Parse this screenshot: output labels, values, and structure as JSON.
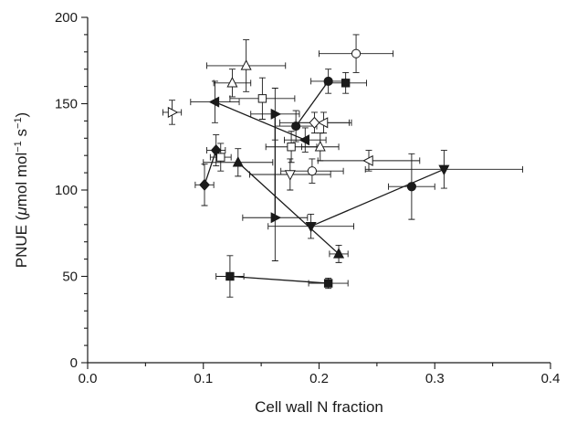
{
  "chart_data": {
    "type": "scatter",
    "title": "",
    "xlabel": "Cell wall N fraction",
    "ylabel_parts": [
      "PNUE (",
      "μ",
      "mol mol",
      "−1",
      " s",
      "−1",
      ")"
    ],
    "xlim": [
      0.0,
      0.4
    ],
    "ylim": [
      0,
      200
    ],
    "x_ticks": [
      0.0,
      0.1,
      0.2,
      0.3,
      0.4
    ],
    "x_tick_labels": [
      "0.0",
      "0.1",
      "0.2",
      "0.3",
      "0.4"
    ],
    "y_ticks": [
      0,
      50,
      100,
      150,
      200
    ],
    "y_tick_labels": [
      "0",
      "50",
      "100",
      "150",
      "200"
    ],
    "grid": false,
    "legend": "none",
    "series": [
      {
        "marker": "square",
        "filled": true,
        "connected": true,
        "points": [
          {
            "x": 0.123,
            "y": 50,
            "xerr": 0.012,
            "yerr": 12
          },
          {
            "x": 0.208,
            "y": 46,
            "xerr": 0.017,
            "yerr": 3
          }
        ]
      },
      {
        "marker": "square",
        "filled": true,
        "connected": false,
        "points": [
          {
            "x": 0.223,
            "y": 162,
            "xerr": 0.018,
            "yerr": 6
          }
        ]
      },
      {
        "marker": "triangle-up",
        "filled": true,
        "connected": true,
        "points": [
          {
            "x": 0.13,
            "y": 116,
            "xerr": 0.03,
            "yerr": 8
          },
          {
            "x": 0.217,
            "y": 63,
            "xerr": 0.008,
            "yerr": 5
          }
        ]
      },
      {
        "marker": "triangle-down",
        "filled": true,
        "connected": true,
        "points": [
          {
            "x": 0.193,
            "y": 79,
            "xerr": 0.037,
            "yerr": 7
          },
          {
            "x": 0.308,
            "y": 112,
            "xerr": 0.068,
            "yerr": 11
          }
        ]
      },
      {
        "marker": "triangle-right",
        "filled": true,
        "connected": true,
        "points": [
          {
            "x": 0.162,
            "y": 144,
            "xerr": 0.021,
            "yerr": 15
          },
          {
            "x": 0.162,
            "y": 84,
            "xerr": 0.028,
            "yerr": 25
          }
        ]
      },
      {
        "marker": "triangle-left",
        "filled": true,
        "connected": true,
        "points": [
          {
            "x": 0.11,
            "y": 151,
            "xerr": 0.021,
            "yerr": 12
          },
          {
            "x": 0.188,
            "y": 129,
            "xerr": 0.018,
            "yerr": 7
          }
        ]
      },
      {
        "marker": "circle",
        "filled": true,
        "connected": true,
        "points": [
          {
            "x": 0.208,
            "y": 163,
            "xerr": 0.015,
            "yerr": 7
          },
          {
            "x": 0.18,
            "y": 137,
            "xerr": 0.018,
            "yerr": 9
          }
        ]
      },
      {
        "marker": "circle",
        "filled": true,
        "connected": false,
        "points": [
          {
            "x": 0.28,
            "y": 102,
            "xerr": 0.02,
            "yerr": 19
          }
        ]
      },
      {
        "marker": "diamond",
        "filled": true,
        "connected": true,
        "points": [
          {
            "x": 0.101,
            "y": 103,
            "xerr": 0.008,
            "yerr": 12
          },
          {
            "x": 0.111,
            "y": 123,
            "xerr": 0.008,
            "yerr": 9
          }
        ]
      },
      {
        "marker": "circle",
        "filled": false,
        "connected": false,
        "points": [
          {
            "x": 0.232,
            "y": 179,
            "xerr": 0.032,
            "yerr": 11
          },
          {
            "x": 0.194,
            "y": 111,
            "xerr": 0.027,
            "yerr": 7
          }
        ]
      },
      {
        "marker": "square",
        "filled": false,
        "connected": false,
        "points": [
          {
            "x": 0.151,
            "y": 153,
            "xerr": 0.028,
            "yerr": 12
          },
          {
            "x": 0.176,
            "y": 125,
            "xerr": 0.022,
            "yerr": 9
          },
          {
            "x": 0.115,
            "y": 119,
            "xerr": 0.009,
            "yerr": 8
          }
        ]
      },
      {
        "marker": "triangle-up",
        "filled": false,
        "connected": false,
        "points": [
          {
            "x": 0.125,
            "y": 162,
            "xerr": 0.016,
            "yerr": 8
          },
          {
            "x": 0.137,
            "y": 172,
            "xerr": 0.034,
            "yerr": 15
          },
          {
            "x": 0.201,
            "y": 125,
            "xerr": 0.016,
            "yerr": 8
          }
        ]
      },
      {
        "marker": "triangle-down",
        "filled": false,
        "connected": false,
        "points": [
          {
            "x": 0.175,
            "y": 109,
            "xerr": 0.035,
            "yerr": 9
          }
        ]
      },
      {
        "marker": "triangle-right",
        "filled": false,
        "connected": false,
        "points": [
          {
            "x": 0.073,
            "y": 145,
            "xerr": 0.008,
            "yerr": 7
          }
        ]
      },
      {
        "marker": "triangle-left",
        "filled": false,
        "connected": false,
        "points": [
          {
            "x": 0.204,
            "y": 139,
            "xerr": 0.024,
            "yerr": 6
          },
          {
            "x": 0.243,
            "y": 117,
            "xerr": 0.044,
            "yerr": 6
          }
        ]
      },
      {
        "marker": "diamond",
        "filled": false,
        "connected": false,
        "points": [
          {
            "x": 0.196,
            "y": 139,
            "xerr": 0.03,
            "yerr": 6
          }
        ]
      }
    ]
  }
}
